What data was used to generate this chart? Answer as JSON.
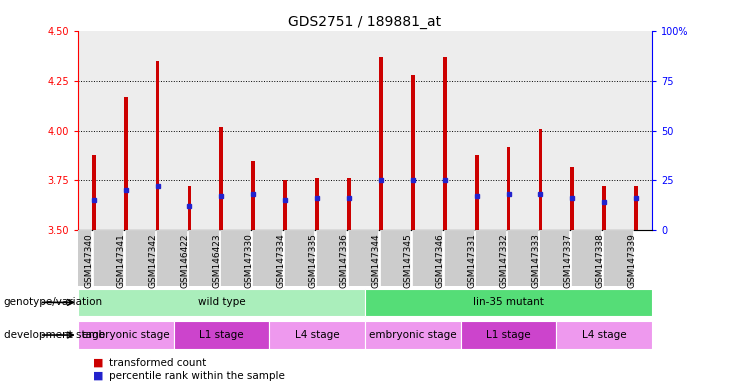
{
  "title": "GDS2751 / 189881_at",
  "samples": [
    "GSM147340",
    "GSM147341",
    "GSM147342",
    "GSM146422",
    "GSM146423",
    "GSM147330",
    "GSM147334",
    "GSM147335",
    "GSM147336",
    "GSM147344",
    "GSM147345",
    "GSM147346",
    "GSM147331",
    "GSM147332",
    "GSM147333",
    "GSM147337",
    "GSM147338",
    "GSM147339"
  ],
  "transformed_count": [
    3.88,
    4.17,
    4.35,
    3.72,
    4.02,
    3.85,
    3.75,
    3.76,
    3.76,
    4.37,
    4.28,
    4.37,
    3.88,
    3.92,
    4.01,
    3.82,
    3.72,
    3.72
  ],
  "percentile_rank": [
    15,
    20,
    22,
    12,
    17,
    18,
    15,
    16,
    16,
    25,
    25,
    25,
    17,
    18,
    18,
    16,
    14,
    16
  ],
  "ylim_left": [
    3.5,
    4.5
  ],
  "ylim_right": [
    0,
    100
  ],
  "yticks_left": [
    3.5,
    3.75,
    4.0,
    4.25,
    4.5
  ],
  "yticks_right": [
    0,
    25,
    50,
    75,
    100
  ],
  "bar_color": "#cc0000",
  "dot_color": "#2222cc",
  "bar_bottom": 3.5,
  "bar_width": 0.12,
  "col_bg_color": "#cccccc",
  "genotype_groups": [
    {
      "label": "wild type",
      "start": 0,
      "end": 9,
      "color": "#aaeebb"
    },
    {
      "label": "lin-35 mutant",
      "start": 9,
      "end": 18,
      "color": "#55dd77"
    }
  ],
  "stage_groups": [
    {
      "label": "embryonic stage",
      "start": 0,
      "end": 3,
      "color": "#ee99ee"
    },
    {
      "label": "L1 stage",
      "start": 3,
      "end": 6,
      "color": "#cc44cc"
    },
    {
      "label": "L4 stage",
      "start": 6,
      "end": 9,
      "color": "#ee99ee"
    },
    {
      "label": "embryonic stage",
      "start": 9,
      "end": 12,
      "color": "#ee99ee"
    },
    {
      "label": "L1 stage",
      "start": 12,
      "end": 15,
      "color": "#cc44cc"
    },
    {
      "label": "L4 stage",
      "start": 15,
      "end": 18,
      "color": "#ee99ee"
    }
  ],
  "legend_items": [
    {
      "label": "transformed count",
      "color": "#cc0000"
    },
    {
      "label": "percentile rank within the sample",
      "color": "#2222cc"
    }
  ],
  "title_fontsize": 10,
  "tick_fontsize": 7,
  "xtick_fontsize": 6.5,
  "annot_fontsize": 7.5,
  "legend_fontsize": 7.5
}
